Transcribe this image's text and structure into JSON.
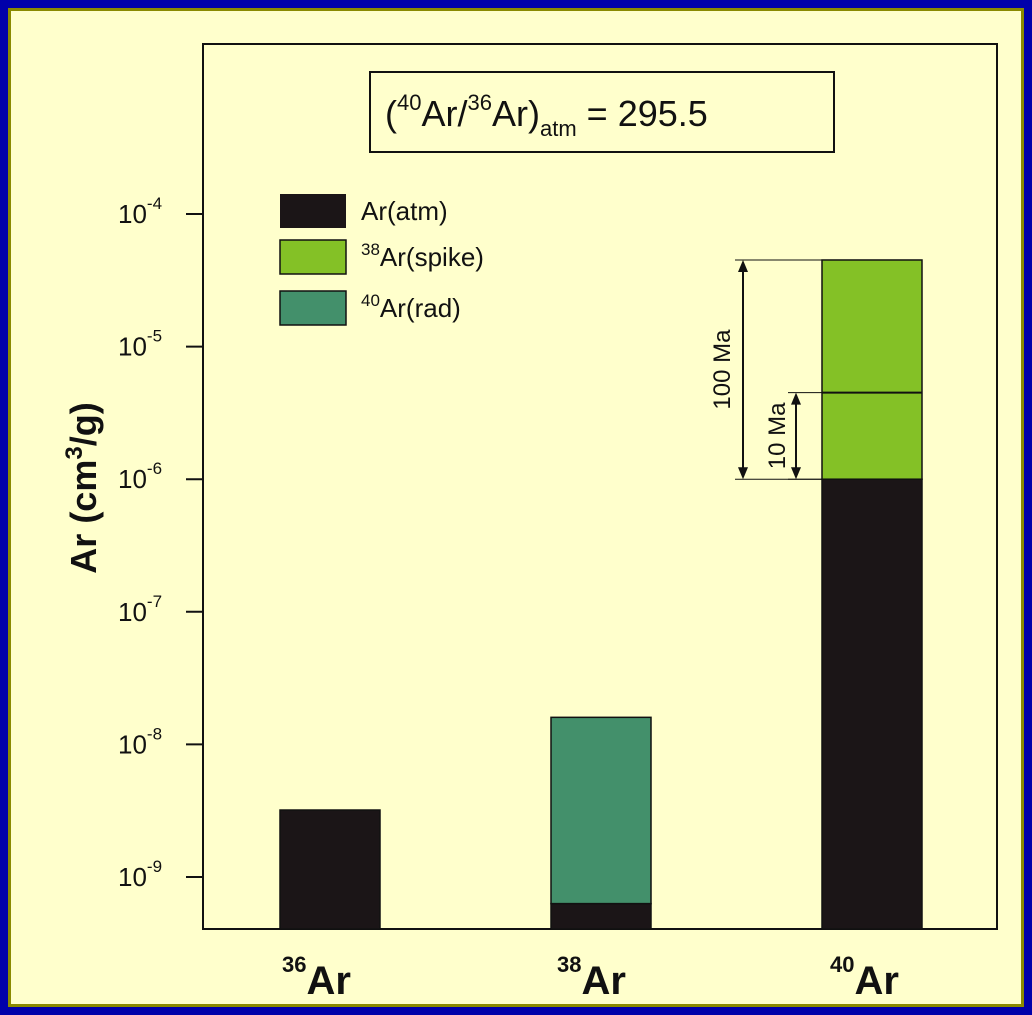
{
  "colors": {
    "background_outer": "#0000aa",
    "background_inner": "#ffffcc",
    "atm": "#1b1517",
    "spike": "#84c126",
    "rad": "#43906b"
  },
  "annotation": {
    "open": "(",
    "sup1": "40",
    "mid1": "Ar/",
    "sup2": "36",
    "mid2": "Ar)",
    "sub": "atm",
    "tail": " = 295.5"
  },
  "chart_data": {
    "type": "bar",
    "stacked": true,
    "y_scale": "log",
    "ylim": [
      4e-10,
      0.001
    ],
    "ylabel": {
      "text": "Ar (cm",
      "sup": "3",
      "tail": "/g)"
    },
    "y_ticks": [
      {
        "base": "10",
        "exp": "-9",
        "value": 1e-09
      },
      {
        "base": "10",
        "exp": "-8",
        "value": 1e-08
      },
      {
        "base": "10",
        "exp": "-7",
        "value": 1e-07
      },
      {
        "base": "10",
        "exp": "-6",
        "value": 1e-06
      },
      {
        "base": "10",
        "exp": "-5",
        "value": 1e-05
      },
      {
        "base": "10",
        "exp": "-4",
        "value": 0.0001
      }
    ],
    "categories": [
      {
        "sup": "36",
        "label": "Ar"
      },
      {
        "sup": "38",
        "label": "Ar"
      },
      {
        "sup": "40",
        "label": "Ar"
      }
    ],
    "legend": [
      {
        "key": "atm",
        "sup": "",
        "label": "Ar(atm)"
      },
      {
        "key": "spike",
        "sup": "38",
        "label": "Ar(spike)"
      },
      {
        "key": "rad",
        "sup": "40",
        "label": "Ar(rad)"
      }
    ],
    "bars": [
      {
        "category": 0,
        "segments": [
          {
            "key": "atm",
            "from": 4e-10,
            "to": 3.2e-09
          }
        ]
      },
      {
        "category": 1,
        "segments": [
          {
            "key": "atm",
            "from": 4e-10,
            "to": 6.3e-10
          },
          {
            "key": "rad",
            "from": 6.3e-10,
            "to": 1.6e-08
          }
        ]
      },
      {
        "category": 2,
        "segments": [
          {
            "key": "atm",
            "from": 4e-10,
            "to": 1e-06
          },
          {
            "key": "spike",
            "from": 1e-06,
            "to": 4.5e-05
          }
        ]
      }
    ],
    "divider": {
      "category": 2,
      "value": 4.5e-06
    },
    "age_arrows": [
      {
        "label": "100 Ma",
        "from": 1e-06,
        "to": 4.5e-05
      },
      {
        "label": "10 Ma",
        "from": 1e-06,
        "to": 4.5e-06
      }
    ]
  }
}
